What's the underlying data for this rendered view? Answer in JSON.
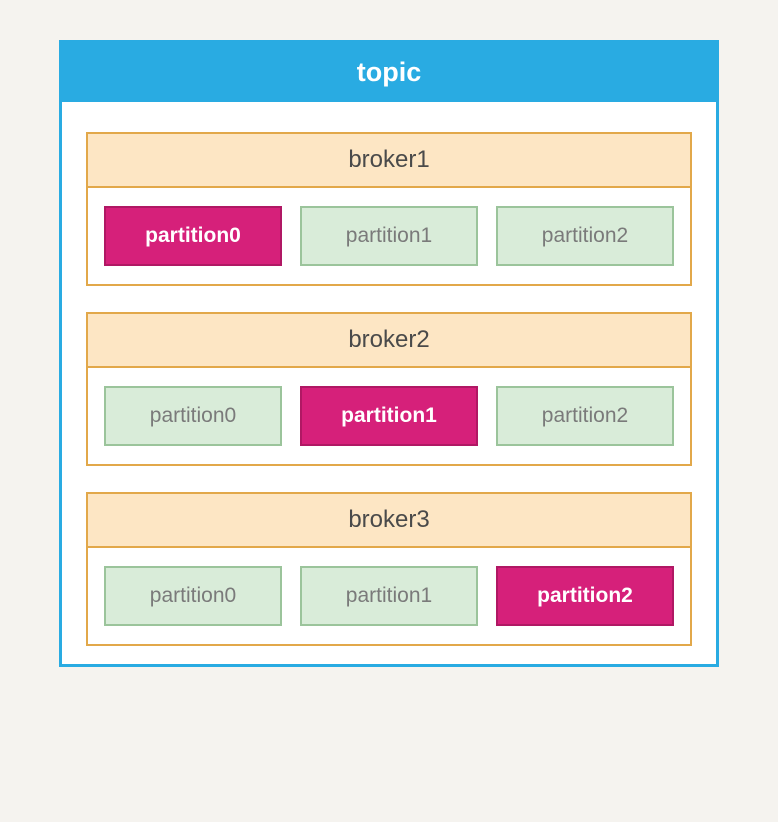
{
  "diagram": {
    "type": "infographic",
    "title": "topic",
    "title_bg": "#29abe2",
    "title_color": "#ffffff",
    "title_fontsize": 27,
    "container_border_color": "#29abe2",
    "body_bg": "#ffffff",
    "page_bg": "#f5f3ef",
    "broker_border_color": "#e2a84a",
    "broker_header_bg": "#fde6c4",
    "broker_header_color": "#4a4a4a",
    "broker_header_fontsize": 24,
    "partition_fontsize": 21,
    "leader_bg": "#d6207a",
    "leader_border": "#b01864",
    "leader_color": "#ffffff",
    "replica_bg": "#d9ecd9",
    "replica_border": "#9bc49b",
    "replica_color": "#7a7a7a",
    "brokers": [
      {
        "label": "broker1",
        "partitions": [
          {
            "label": "partition0",
            "role": "leader"
          },
          {
            "label": "partition1",
            "role": "replica"
          },
          {
            "label": "partition2",
            "role": "replica"
          }
        ]
      },
      {
        "label": "broker2",
        "partitions": [
          {
            "label": "partition0",
            "role": "replica"
          },
          {
            "label": "partition1",
            "role": "leader"
          },
          {
            "label": "partition2",
            "role": "replica"
          }
        ]
      },
      {
        "label": "broker3",
        "partitions": [
          {
            "label": "partition0",
            "role": "replica"
          },
          {
            "label": "partition1",
            "role": "replica"
          },
          {
            "label": "partition2",
            "role": "leader"
          }
        ]
      }
    ]
  }
}
